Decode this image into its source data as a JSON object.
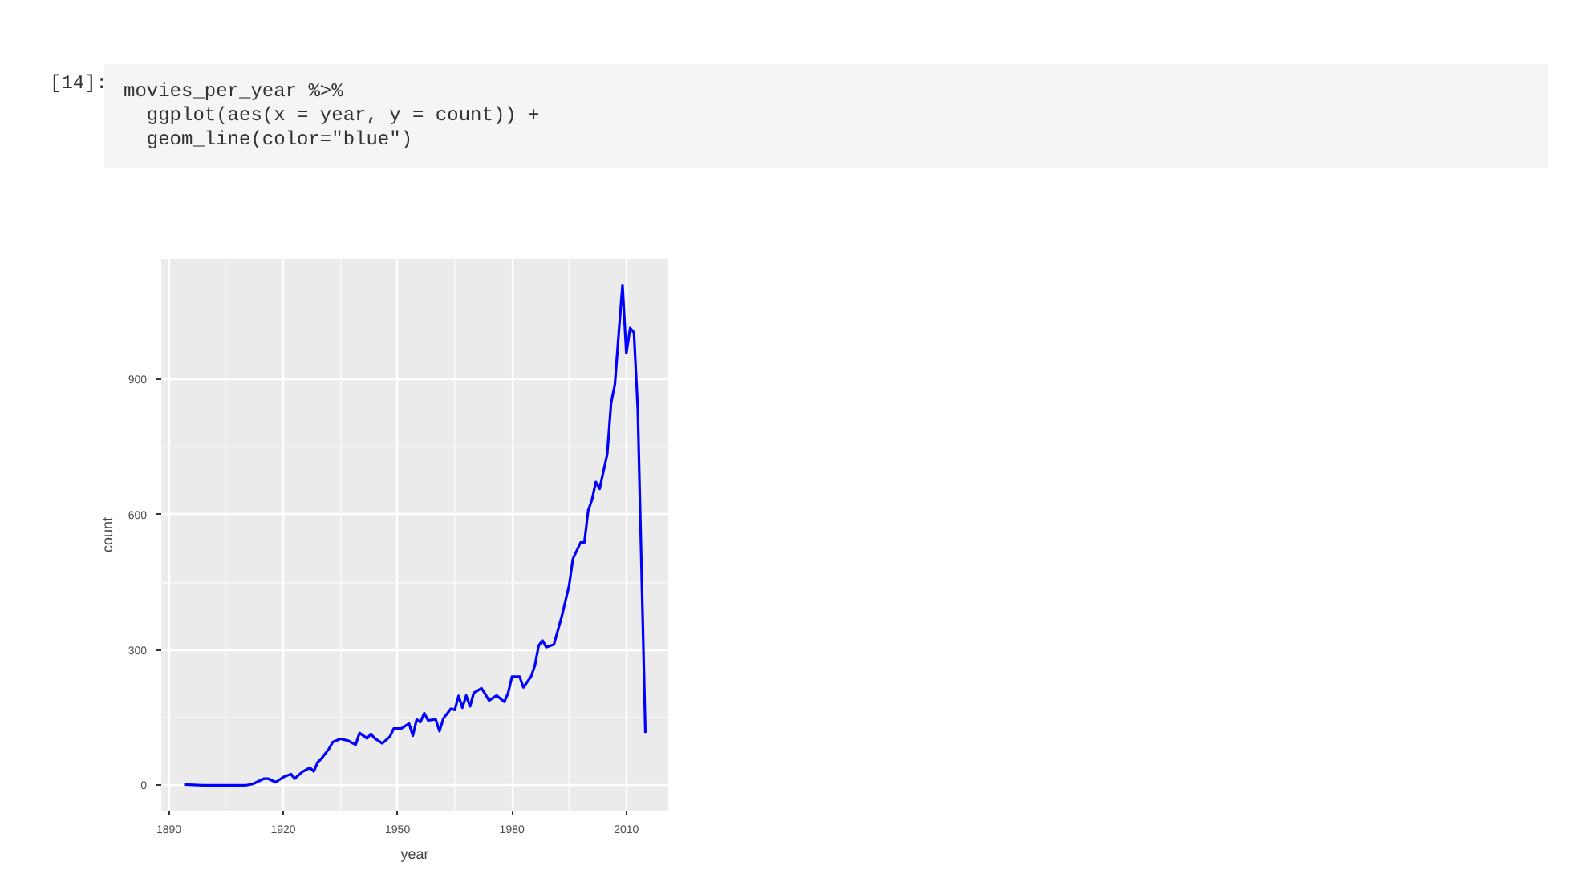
{
  "chart_data": {
    "type": "line",
    "xlabel": "year",
    "ylabel": "count",
    "annotations": [
      "[14]:",
      "movies_per_year %>%",
      "  ggplot(aes(x = year, y = count)) +",
      "  geom_line(color=\"blue\")"
    ],
    "x": [
      1894,
      1899,
      1910,
      1912,
      1915,
      1916,
      1918,
      1920,
      1922,
      1923,
      1925,
      1927,
      1928,
      1929,
      1930,
      1932,
      1933,
      1935,
      1937,
      1939,
      1940,
      1942,
      1943,
      1944,
      1946,
      1948,
      1949,
      1951,
      1953,
      1954,
      1955,
      1956,
      1957,
      1958,
      1960,
      1961,
      1962,
      1964,
      1965,
      1966,
      1967,
      1968,
      1969,
      1970,
      1972,
      1973,
      1974,
      1976,
      1978,
      1979,
      1980,
      1982,
      1983,
      1985,
      1986,
      1987,
      1988,
      1989,
      1991,
      1993,
      1995,
      1996,
      1998,
      1999,
      2000,
      2001,
      2002,
      2003,
      2005,
      2006,
      2007,
      2008,
      2009,
      2010,
      2011,
      2012,
      2013,
      2015
    ],
    "series": [
      {
        "color": "#0000ff",
        "values": [
          2,
          0,
          0,
          3,
          15,
          15,
          7,
          18,
          25,
          15,
          30,
          39,
          31,
          51,
          59,
          81,
          96,
          103,
          99,
          90,
          116,
          104,
          114,
          104,
          93,
          108,
          126,
          126,
          137,
          110,
          146,
          140,
          160,
          144,
          146,
          120,
          148,
          170,
          167,
          198,
          172,
          199,
          175,
          205,
          215,
          202,
          188,
          199,
          185,
          205,
          241,
          241,
          217,
          241,
          265,
          309,
          321,
          306,
          312,
          372,
          443,
          502,
          538,
          538,
          609,
          633,
          672,
          657,
          734,
          847,
          888,
          1001,
          1108,
          957,
          1013,
          1003,
          835,
          116
        ]
      }
    ],
    "xlim": [
      1888,
      2021
    ],
    "ylim": [
      -56,
      1166
    ],
    "xticks": [
      1890,
      1920,
      1950,
      1980,
      2010
    ],
    "yticks": [
      0,
      300,
      600,
      900
    ],
    "grid": true,
    "line_style": "solid"
  }
}
